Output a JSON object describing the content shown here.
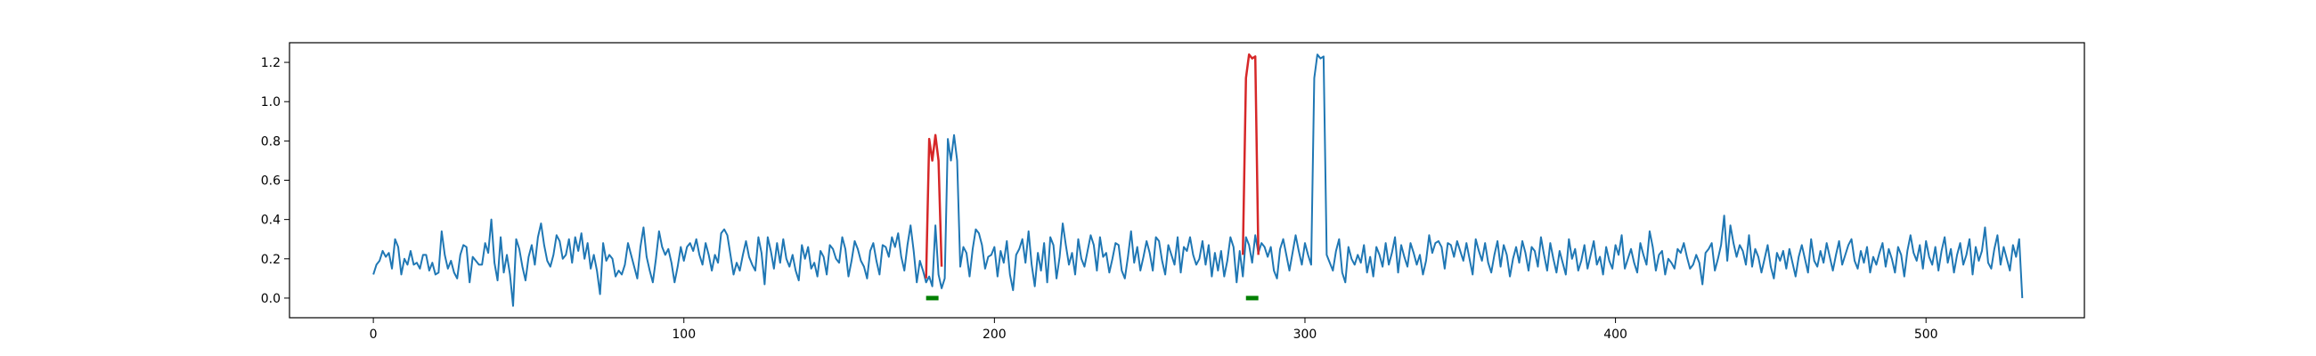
{
  "chart_data": {
    "type": "line",
    "title": "",
    "xlabel": "",
    "ylabel": "",
    "xlim": [
      -27,
      551
    ],
    "ylim": [
      -0.1,
      1.3
    ],
    "x_ticks": [
      0,
      100,
      200,
      300,
      400,
      500
    ],
    "y_ticks": [
      0.0,
      0.2,
      0.4,
      0.6,
      0.8,
      1.0,
      1.2
    ],
    "x_tick_labels": [
      "0",
      "100",
      "200",
      "300",
      "400",
      "500"
    ],
    "y_tick_labels": [
      "0.0",
      "0.2",
      "0.4",
      "0.6",
      "0.8",
      "1.0",
      "1.2"
    ],
    "grid": false,
    "legend": "none",
    "series": [
      {
        "color": "#1f77b4",
        "values": [
          0.12,
          0.17,
          0.19,
          0.24,
          0.21,
          0.23,
          0.15,
          0.3,
          0.26,
          0.12,
          0.2,
          0.17,
          0.24,
          0.17,
          0.18,
          0.15,
          0.22,
          0.22,
          0.14,
          0.18,
          0.12,
          0.13,
          0.34,
          0.22,
          0.15,
          0.19,
          0.13,
          0.1,
          0.22,
          0.27,
          0.26,
          0.08,
          0.21,
          0.19,
          0.17,
          0.17,
          0.28,
          0.23,
          0.4,
          0.18,
          0.09,
          0.31,
          0.13,
          0.22,
          0.12,
          -0.04,
          0.3,
          0.25,
          0.16,
          0.09,
          0.21,
          0.27,
          0.17,
          0.31,
          0.38,
          0.27,
          0.19,
          0.16,
          0.22,
          0.32,
          0.29,
          0.2,
          0.22,
          0.3,
          0.18,
          0.31,
          0.24,
          0.33,
          0.2,
          0.28,
          0.15,
          0.22,
          0.14,
          0.02,
          0.28,
          0.19,
          0.22,
          0.2,
          0.11,
          0.14,
          0.12,
          0.17,
          0.28,
          0.22,
          0.16,
          0.1,
          0.26,
          0.36,
          0.21,
          0.14,
          0.08,
          0.2,
          0.34,
          0.26,
          0.22,
          0.25,
          0.18,
          0.08,
          0.16,
          0.26,
          0.19,
          0.26,
          0.28,
          0.24,
          0.3,
          0.22,
          0.17,
          0.28,
          0.22,
          0.14,
          0.22,
          0.18,
          0.33,
          0.35,
          0.32,
          0.22,
          0.12,
          0.18,
          0.14,
          0.22,
          0.29,
          0.21,
          0.17,
          0.14,
          0.31,
          0.23,
          0.07,
          0.31,
          0.24,
          0.15,
          0.28,
          0.18,
          0.3,
          0.2,
          0.16,
          0.22,
          0.14,
          0.09,
          0.27,
          0.2,
          0.26,
          0.15,
          0.18,
          0.11,
          0.24,
          0.21,
          0.12,
          0.27,
          0.25,
          0.2,
          0.18,
          0.31,
          0.25,
          0.11,
          0.19,
          0.29,
          0.25,
          0.19,
          0.16,
          0.1,
          0.24,
          0.28,
          0.19,
          0.12,
          0.27,
          0.26,
          0.21,
          0.31,
          0.26,
          0.33,
          0.21,
          0.14,
          0.27,
          0.37,
          0.24,
          0.08,
          0.19,
          0.14,
          0.08,
          0.11,
          0.06,
          0.37,
          0.12,
          0.05,
          0.1,
          0.81,
          0.7,
          0.83,
          0.7,
          0.16,
          0.26,
          0.23,
          0.11,
          0.25,
          0.35,
          0.33,
          0.27,
          0.15,
          0.21,
          0.22,
          0.26,
          0.11,
          0.24,
          0.18,
          0.29,
          0.12,
          0.04,
          0.22,
          0.25,
          0.3,
          0.18,
          0.34,
          0.17,
          0.06,
          0.23,
          0.14,
          0.28,
          0.08,
          0.31,
          0.27,
          0.1,
          0.21,
          0.38,
          0.27,
          0.17,
          0.23,
          0.12,
          0.3,
          0.2,
          0.16,
          0.24,
          0.32,
          0.27,
          0.14,
          0.31,
          0.21,
          0.23,
          0.13,
          0.2,
          0.28,
          0.27,
          0.14,
          0.1,
          0.21,
          0.34,
          0.18,
          0.26,
          0.14,
          0.21,
          0.29,
          0.23,
          0.14,
          0.31,
          0.29,
          0.19,
          0.12,
          0.27,
          0.22,
          0.17,
          0.31,
          0.13,
          0.26,
          0.24,
          0.31,
          0.22,
          0.17,
          0.2,
          0.29,
          0.17,
          0.27,
          0.11,
          0.23,
          0.14,
          0.24,
          0.11,
          0.19,
          0.31,
          0.26,
          0.08,
          0.24,
          0.11,
          0.31,
          0.27,
          0.18,
          0.32,
          0.23,
          0.28,
          0.26,
          0.21,
          0.26,
          0.14,
          0.1,
          0.25,
          0.3,
          0.22,
          0.14,
          0.23,
          0.32,
          0.24,
          0.17,
          0.28,
          0.22,
          0.17,
          1.12,
          1.24,
          1.22,
          1.23,
          0.22,
          0.18,
          0.14,
          0.24,
          0.3,
          0.13,
          0.08,
          0.26,
          0.2,
          0.17,
          0.22,
          0.18,
          0.27,
          0.13,
          0.21,
          0.11,
          0.26,
          0.22,
          0.16,
          0.28,
          0.17,
          0.23,
          0.31,
          0.13,
          0.27,
          0.21,
          0.16,
          0.28,
          0.23,
          0.17,
          0.22,
          0.12,
          0.19,
          0.32,
          0.23,
          0.28,
          0.29,
          0.26,
          0.15,
          0.28,
          0.27,
          0.21,
          0.29,
          0.24,
          0.19,
          0.28,
          0.2,
          0.12,
          0.3,
          0.24,
          0.19,
          0.28,
          0.18,
          0.13,
          0.22,
          0.29,
          0.16,
          0.27,
          0.22,
          0.11,
          0.2,
          0.26,
          0.18,
          0.29,
          0.23,
          0.14,
          0.26,
          0.24,
          0.16,
          0.31,
          0.22,
          0.14,
          0.28,
          0.2,
          0.13,
          0.24,
          0.18,
          0.12,
          0.3,
          0.2,
          0.25,
          0.14,
          0.19,
          0.27,
          0.15,
          0.22,
          0.29,
          0.17,
          0.21,
          0.12,
          0.26,
          0.19,
          0.15,
          0.27,
          0.22,
          0.32,
          0.15,
          0.2,
          0.25,
          0.18,
          0.13,
          0.28,
          0.22,
          0.17,
          0.34,
          0.26,
          0.14,
          0.22,
          0.24,
          0.12,
          0.2,
          0.18,
          0.15,
          0.25,
          0.23,
          0.28,
          0.21,
          0.15,
          0.17,
          0.22,
          0.18,
          0.07,
          0.23,
          0.25,
          0.28,
          0.14,
          0.2,
          0.27,
          0.42,
          0.19,
          0.37,
          0.28,
          0.21,
          0.27,
          0.24,
          0.17,
          0.32,
          0.16,
          0.25,
          0.21,
          0.13,
          0.2,
          0.27,
          0.16,
          0.1,
          0.23,
          0.19,
          0.24,
          0.15,
          0.25,
          0.18,
          0.11,
          0.21,
          0.27,
          0.2,
          0.13,
          0.3,
          0.19,
          0.16,
          0.24,
          0.18,
          0.28,
          0.21,
          0.14,
          0.22,
          0.29,
          0.17,
          0.22,
          0.27,
          0.3,
          0.19,
          0.15,
          0.24,
          0.18,
          0.26,
          0.13,
          0.21,
          0.17,
          0.23,
          0.28,
          0.16,
          0.25,
          0.2,
          0.13,
          0.26,
          0.22,
          0.11,
          0.24,
          0.32,
          0.23,
          0.19,
          0.27,
          0.15,
          0.29,
          0.21,
          0.17,
          0.26,
          0.14,
          0.24,
          0.31,
          0.18,
          0.25,
          0.13,
          0.22,
          0.28,
          0.17,
          0.22,
          0.3,
          0.12,
          0.26,
          0.19,
          0.24,
          0.36,
          0.18,
          0.15,
          0.25,
          0.32,
          0.17,
          0.26,
          0.2,
          0.14,
          0.27,
          0.21,
          0.3,
          0.0
        ]
      },
      {
        "color": "#d62728",
        "segments": [
          {
            "x": [
              178,
              179,
              180,
              181,
              182,
              183
            ],
            "values": [
              0.1,
              0.81,
              0.7,
              0.83,
              0.7,
              0.16
            ]
          },
          {
            "x": [
              280,
              281,
              282,
              283,
              284,
              285
            ],
            "values": [
              0.22,
              1.12,
              1.24,
              1.22,
              1.23,
              0.22
            ]
          }
        ]
      },
      {
        "color": "#008000",
        "segments": [
          {
            "x": [
              178,
              182
            ],
            "values": [
              0.0,
              0.0
            ]
          },
          {
            "x": [
              281,
              285
            ],
            "values": [
              0.0,
              0.0
            ]
          }
        ]
      }
    ]
  }
}
